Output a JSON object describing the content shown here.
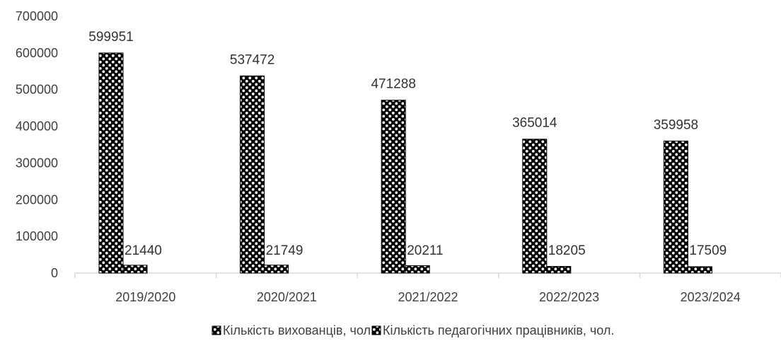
{
  "chart_data": {
    "type": "bar",
    "title": "",
    "xlabel": "",
    "ylabel": "",
    "categories": [
      "2019/2020",
      "2020/2021",
      "2021/2022",
      "2022/2023",
      "2023/2024"
    ],
    "series": [
      {
        "name": "Кількість вихованців, чол.",
        "values": [
          599951,
          537472,
          471288,
          365014,
          359958
        ],
        "pattern": "checker-circles",
        "color": "#000000"
      },
      {
        "name": "Кількість педагогічних працівників, чол.",
        "values": [
          21440,
          21749,
          20211,
          18205,
          17509
        ],
        "pattern": "checker-circles",
        "color": "#000000"
      }
    ],
    "ylim": [
      0,
      700000
    ],
    "yticks": [
      "0",
      "100000",
      "200000",
      "300000",
      "400000",
      "500000",
      "600000",
      "700000"
    ],
    "grid": false,
    "legend_position": "bottom",
    "data_labels": true,
    "colors": {
      "axis": "#d9d9d9",
      "text": "#404040",
      "bar": "#000000"
    }
  }
}
